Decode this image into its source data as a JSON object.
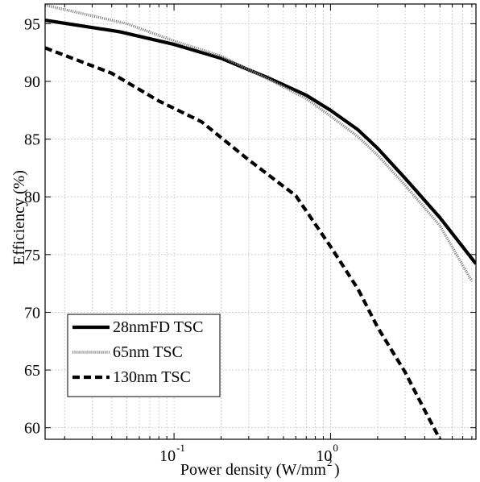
{
  "chart_data": {
    "type": "line",
    "x_scale": "log",
    "grid": true,
    "xlim": [
      0.015,
      8.5
    ],
    "ylim": [
      59,
      96.7
    ],
    "xlabel": "Power density (W/mm",
    "xlabel_sup": "2",
    "xlabel_close": ")",
    "ylabel": "Efficiency (%)",
    "xticks": [
      {
        "value": 0.1,
        "base": "10",
        "exp": "-1"
      },
      {
        "value": 1,
        "base": "10",
        "exp": "0"
      }
    ],
    "yticks": [
      60,
      65,
      70,
      75,
      80,
      85,
      90,
      95
    ],
    "legend_position": "bottom-left",
    "series": [
      {
        "name": "28nmFD TSC",
        "style": "solid",
        "color": "#000000",
        "x": [
          0.015,
          0.045,
          0.1,
          0.2,
          0.4,
          0.7,
          1.0,
          1.5,
          2.0,
          3.0,
          5.0,
          8.5
        ],
        "y": [
          95.3,
          94.3,
          93.2,
          92.0,
          90.3,
          88.8,
          87.5,
          85.8,
          84.2,
          81.6,
          78.2,
          74.2
        ]
      },
      {
        "name": "65nm TSC",
        "style": "dotted",
        "color": "#888888",
        "x": [
          0.015,
          0.05,
          0.1,
          0.2,
          0.4,
          0.7,
          1.0,
          1.5,
          2.0,
          3.0,
          5.0,
          8.0
        ],
        "y": [
          96.6,
          95.0,
          93.5,
          92.2,
          90.2,
          88.5,
          87.0,
          85.2,
          83.6,
          81.0,
          77.5,
          72.7
        ]
      },
      {
        "name": "130nm TSC",
        "style": "dashed",
        "color": "#000000",
        "x": [
          0.015,
          0.04,
          0.08,
          0.15,
          0.3,
          0.6,
          1.0,
          1.5,
          2.0,
          3.0,
          4.0,
          5.0
        ],
        "y": [
          92.9,
          90.7,
          88.3,
          86.5,
          83.2,
          80.1,
          75.7,
          72.0,
          68.7,
          64.8,
          61.5,
          59.0
        ]
      }
    ]
  }
}
